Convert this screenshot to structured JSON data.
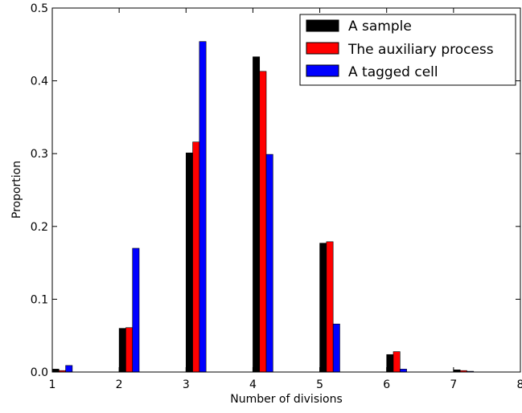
{
  "chart_data": {
    "type": "bar",
    "xlabel": "Number of divisions",
    "ylabel": "Proportion",
    "xlim": [
      1,
      8
    ],
    "ylim": [
      0,
      0.5
    ],
    "x_ticks": [
      "1",
      "2",
      "3",
      "4",
      "5",
      "6",
      "7",
      "8"
    ],
    "y_ticks": [
      "0.0",
      "0.1",
      "0.2",
      "0.3",
      "0.4",
      "0.5"
    ],
    "categories": [
      1,
      2,
      3,
      4,
      5,
      6,
      7
    ],
    "series": [
      {
        "name": "A sample",
        "color": "#000000",
        "values": [
          0.004,
          0.06,
          0.301,
          0.433,
          0.177,
          0.024,
          0.003
        ]
      },
      {
        "name": "The auxiliary process",
        "color": "#ff0000",
        "values": [
          0.002,
          0.061,
          0.316,
          0.413,
          0.179,
          0.028,
          0.002
        ]
      },
      {
        "name": "A tagged cell",
        "color": "#0000ff",
        "values": [
          0.009,
          0.17,
          0.454,
          0.299,
          0.066,
          0.004,
          0.001
        ]
      }
    ],
    "legend_position": "top-right",
    "grid": false
  }
}
